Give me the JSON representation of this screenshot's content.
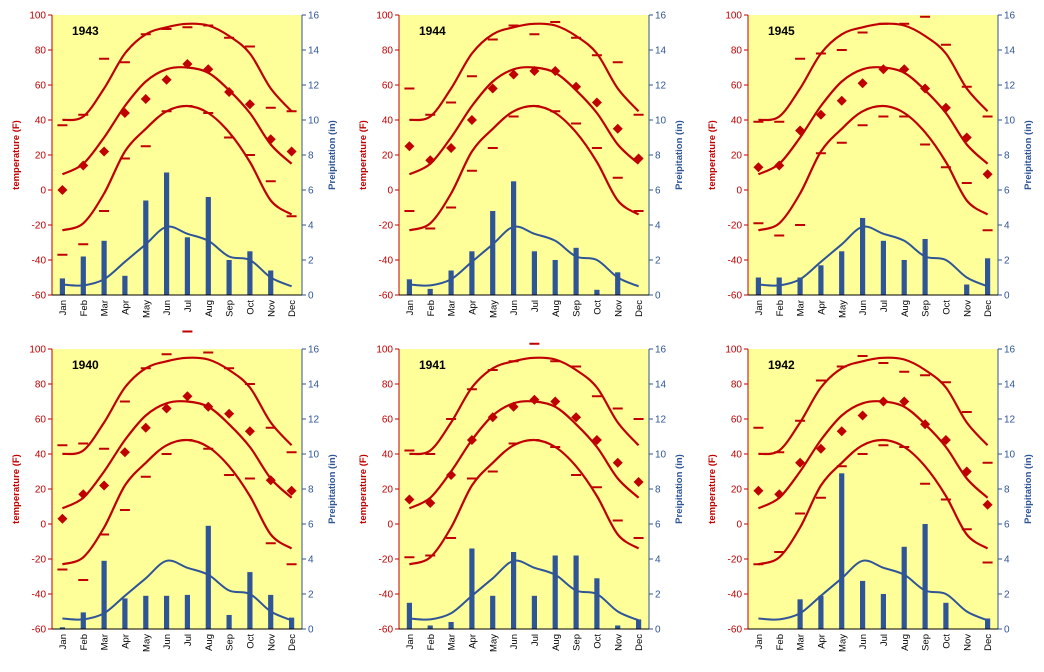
{
  "common": {
    "months": [
      "Jan",
      "Feb",
      "Mar",
      "Apr",
      "May",
      "Jun",
      "Jul",
      "Aug",
      "Sep",
      "Oct",
      "Nov",
      "Dec"
    ],
    "left_axis_label": "temperature (F)",
    "right_axis_label": "Preipitation (in)",
    "left_ticks": [
      "-60",
      "-40",
      "-20",
      "0",
      "20",
      "40",
      "60",
      "80",
      "100"
    ],
    "right_ticks": [
      "0",
      "2",
      "4",
      "6",
      "8",
      "10",
      "12",
      "14",
      "16"
    ],
    "colors": {
      "plot_bg": "#ffff99",
      "temperature": "#c00000",
      "precipitation": "#2f5597",
      "axis": "#000000"
    }
  },
  "chart_data": [
    {
      "type": "bar+line",
      "title": "1943",
      "ylim_temperature": [
        -60,
        100
      ],
      "ylim_precipitation": [
        0,
        16
      ],
      "normal_high": [
        40,
        42,
        58,
        78,
        89,
        93,
        95,
        94,
        88,
        78,
        58,
        45
      ],
      "normal_mean": [
        9,
        15,
        30,
        48,
        62,
        69,
        70,
        67,
        57,
        44,
        26,
        15
      ],
      "normal_low": [
        -23,
        -19,
        -2,
        22,
        35,
        45,
        48,
        44,
        33,
        16,
        -6,
        -14
      ],
      "monthly_mean": [
        0,
        14,
        22,
        44,
        52,
        63,
        72,
        69,
        56,
        49,
        29,
        22
      ],
      "record_high": [
        37,
        43,
        75,
        73,
        89,
        92,
        93,
        94,
        87,
        82,
        47,
        45
      ],
      "record_low": [
        -37,
        -31,
        -12,
        18,
        25,
        45,
        48,
        44,
        30,
        20,
        5,
        -15
      ],
      "precipitation": [
        0.95,
        2.2,
        3.1,
        1.1,
        5.4,
        7.0,
        3.3,
        5.6,
        2.0,
        2.5,
        1.4,
        0.0
      ],
      "normal_precipitation": [
        0.6,
        0.55,
        0.9,
        1.9,
        2.9,
        3.9,
        3.5,
        3.1,
        2.2,
        2.0,
        1.0,
        0.5
      ]
    },
    {
      "type": "bar+line",
      "title": "1944",
      "ylim_temperature": [
        -60,
        100
      ],
      "ylim_precipitation": [
        0,
        16
      ],
      "normal_high": [
        40,
        42,
        58,
        78,
        89,
        93,
        95,
        94,
        88,
        78,
        58,
        45
      ],
      "normal_mean": [
        9,
        15,
        30,
        48,
        62,
        69,
        70,
        67,
        57,
        44,
        26,
        15
      ],
      "normal_low": [
        -23,
        -19,
        -2,
        22,
        35,
        45,
        48,
        44,
        33,
        16,
        -6,
        -14
      ],
      "monthly_mean": [
        25,
        17,
        24,
        40,
        58,
        66,
        68,
        68,
        59,
        50,
        35,
        18
      ],
      "record_high": [
        58,
        43,
        50,
        65,
        86,
        94,
        89,
        96,
        87,
        77,
        73,
        43
      ],
      "record_low": [
        -12,
        -22,
        -10,
        11,
        24,
        42,
        48,
        45,
        38,
        24,
        7,
        -12
      ],
      "precipitation": [
        0.9,
        0.35,
        1.4,
        2.5,
        4.8,
        6.5,
        2.5,
        2.0,
        2.7,
        0.3,
        1.3,
        0.0
      ],
      "normal_precipitation": [
        0.6,
        0.55,
        0.9,
        1.9,
        2.9,
        3.9,
        3.5,
        3.1,
        2.2,
        2.0,
        1.0,
        0.5
      ]
    },
    {
      "type": "bar+line",
      "title": "1945",
      "ylim_temperature": [
        -60,
        100
      ],
      "ylim_precipitation": [
        0,
        16
      ],
      "normal_high": [
        40,
        42,
        58,
        78,
        89,
        93,
        95,
        94,
        88,
        78,
        58,
        45
      ],
      "normal_mean": [
        9,
        15,
        30,
        48,
        62,
        69,
        70,
        67,
        57,
        44,
        26,
        15
      ],
      "normal_low": [
        -23,
        -19,
        -2,
        22,
        35,
        45,
        48,
        44,
        33,
        16,
        -6,
        -14
      ],
      "monthly_mean": [
        13,
        14,
        34,
        43,
        51,
        61,
        69,
        69,
        58,
        47,
        30,
        9
      ],
      "record_high": [
        39,
        39,
        75,
        78,
        80,
        90,
        95,
        95,
        99,
        83,
        59,
        42
      ],
      "record_low": [
        -19,
        -26,
        -20,
        21,
        27,
        37,
        42,
        42,
        26,
        13,
        4,
        -23
      ],
      "precipitation": [
        1.0,
        1.0,
        1.0,
        1.7,
        2.5,
        4.4,
        3.1,
        2.0,
        3.2,
        0.0,
        0.6,
        2.1
      ],
      "normal_precipitation": [
        0.6,
        0.55,
        0.9,
        1.9,
        2.9,
        3.9,
        3.5,
        3.1,
        2.2,
        2.0,
        1.0,
        0.5
      ]
    },
    {
      "type": "bar+line",
      "title": "1940",
      "ylim_temperature": [
        -60,
        100
      ],
      "ylim_precipitation": [
        0,
        16
      ],
      "normal_high": [
        40,
        42,
        58,
        78,
        89,
        93,
        95,
        94,
        88,
        78,
        58,
        45
      ],
      "normal_mean": [
        9,
        15,
        30,
        48,
        62,
        69,
        70,
        67,
        57,
        44,
        26,
        15
      ],
      "normal_low": [
        -23,
        -19,
        -2,
        22,
        35,
        45,
        48,
        44,
        33,
        16,
        -6,
        -14
      ],
      "monthly_mean": [
        3,
        17,
        22,
        41,
        55,
        66,
        73,
        67,
        63,
        53,
        25,
        19
      ],
      "record_high": [
        45,
        46,
        43,
        70,
        89,
        97,
        110,
        98,
        89,
        80,
        55,
        41
      ],
      "record_low": [
        -26,
        -32,
        -6,
        8,
        27,
        40,
        48,
        43,
        28,
        26,
        -11,
        -23
      ],
      "precipitation": [
        0.1,
        0.95,
        3.9,
        1.75,
        1.9,
        1.9,
        1.95,
        5.9,
        0.8,
        3.25,
        1.95,
        0.65
      ],
      "normal_precipitation": [
        0.6,
        0.55,
        0.9,
        1.9,
        2.9,
        3.9,
        3.5,
        3.1,
        2.2,
        2.0,
        1.0,
        0.5
      ]
    },
    {
      "type": "bar+line",
      "title": "1941",
      "ylim_temperature": [
        -60,
        100
      ],
      "ylim_precipitation": [
        0,
        16
      ],
      "normal_high": [
        40,
        42,
        58,
        78,
        89,
        93,
        95,
        94,
        88,
        78,
        58,
        45
      ],
      "normal_mean": [
        9,
        15,
        30,
        48,
        62,
        69,
        70,
        67,
        57,
        44,
        26,
        15
      ],
      "normal_low": [
        -23,
        -19,
        -2,
        22,
        35,
        45,
        48,
        44,
        33,
        16,
        -6,
        -14
      ],
      "monthly_mean": [
        14,
        12,
        28,
        48,
        61,
        67,
        71,
        70,
        61,
        48,
        35,
        24
      ],
      "record_high": [
        42,
        40,
        60,
        77,
        88,
        93,
        103,
        93,
        90,
        73,
        66,
        60
      ],
      "record_low": [
        -19,
        -18,
        -8,
        26,
        30,
        46,
        48,
        44,
        28,
        21,
        2,
        -8
      ],
      "precipitation": [
        1.5,
        0.2,
        0.4,
        4.6,
        1.9,
        4.4,
        1.9,
        4.2,
        4.2,
        2.9,
        0.2,
        0.55
      ],
      "normal_precipitation": [
        0.6,
        0.55,
        0.9,
        1.9,
        2.9,
        3.9,
        3.5,
        3.1,
        2.2,
        2.0,
        1.0,
        0.5
      ]
    },
    {
      "type": "bar+line",
      "title": "1942",
      "ylim_temperature": [
        -60,
        100
      ],
      "ylim_precipitation": [
        0,
        16
      ],
      "normal_high": [
        40,
        42,
        58,
        78,
        89,
        93,
        95,
        94,
        88,
        78,
        58,
        45
      ],
      "normal_mean": [
        9,
        15,
        30,
        48,
        62,
        69,
        70,
        67,
        57,
        44,
        26,
        15
      ],
      "normal_low": [
        -23,
        -19,
        -2,
        22,
        35,
        45,
        48,
        44,
        33,
        16,
        -6,
        -14
      ],
      "monthly_mean": [
        19,
        17,
        35,
        43,
        53,
        62,
        70,
        70,
        57,
        48,
        30,
        11
      ],
      "record_high": [
        55,
        41,
        59,
        82,
        90,
        96,
        92,
        87,
        85,
        81,
        64,
        35
      ],
      "record_low": [
        -23,
        -16,
        6,
        15,
        33,
        40,
        45,
        44,
        23,
        14,
        -3,
        -22
      ],
      "precipitation": [
        0.0,
        0.0,
        1.7,
        1.9,
        8.9,
        2.75,
        2.0,
        4.7,
        6.0,
        1.5,
        0.0,
        0.6
      ],
      "normal_precipitation": [
        0.6,
        0.55,
        0.9,
        1.9,
        2.9,
        3.9,
        3.5,
        3.1,
        2.2,
        2.0,
        1.0,
        0.5
      ]
    }
  ]
}
